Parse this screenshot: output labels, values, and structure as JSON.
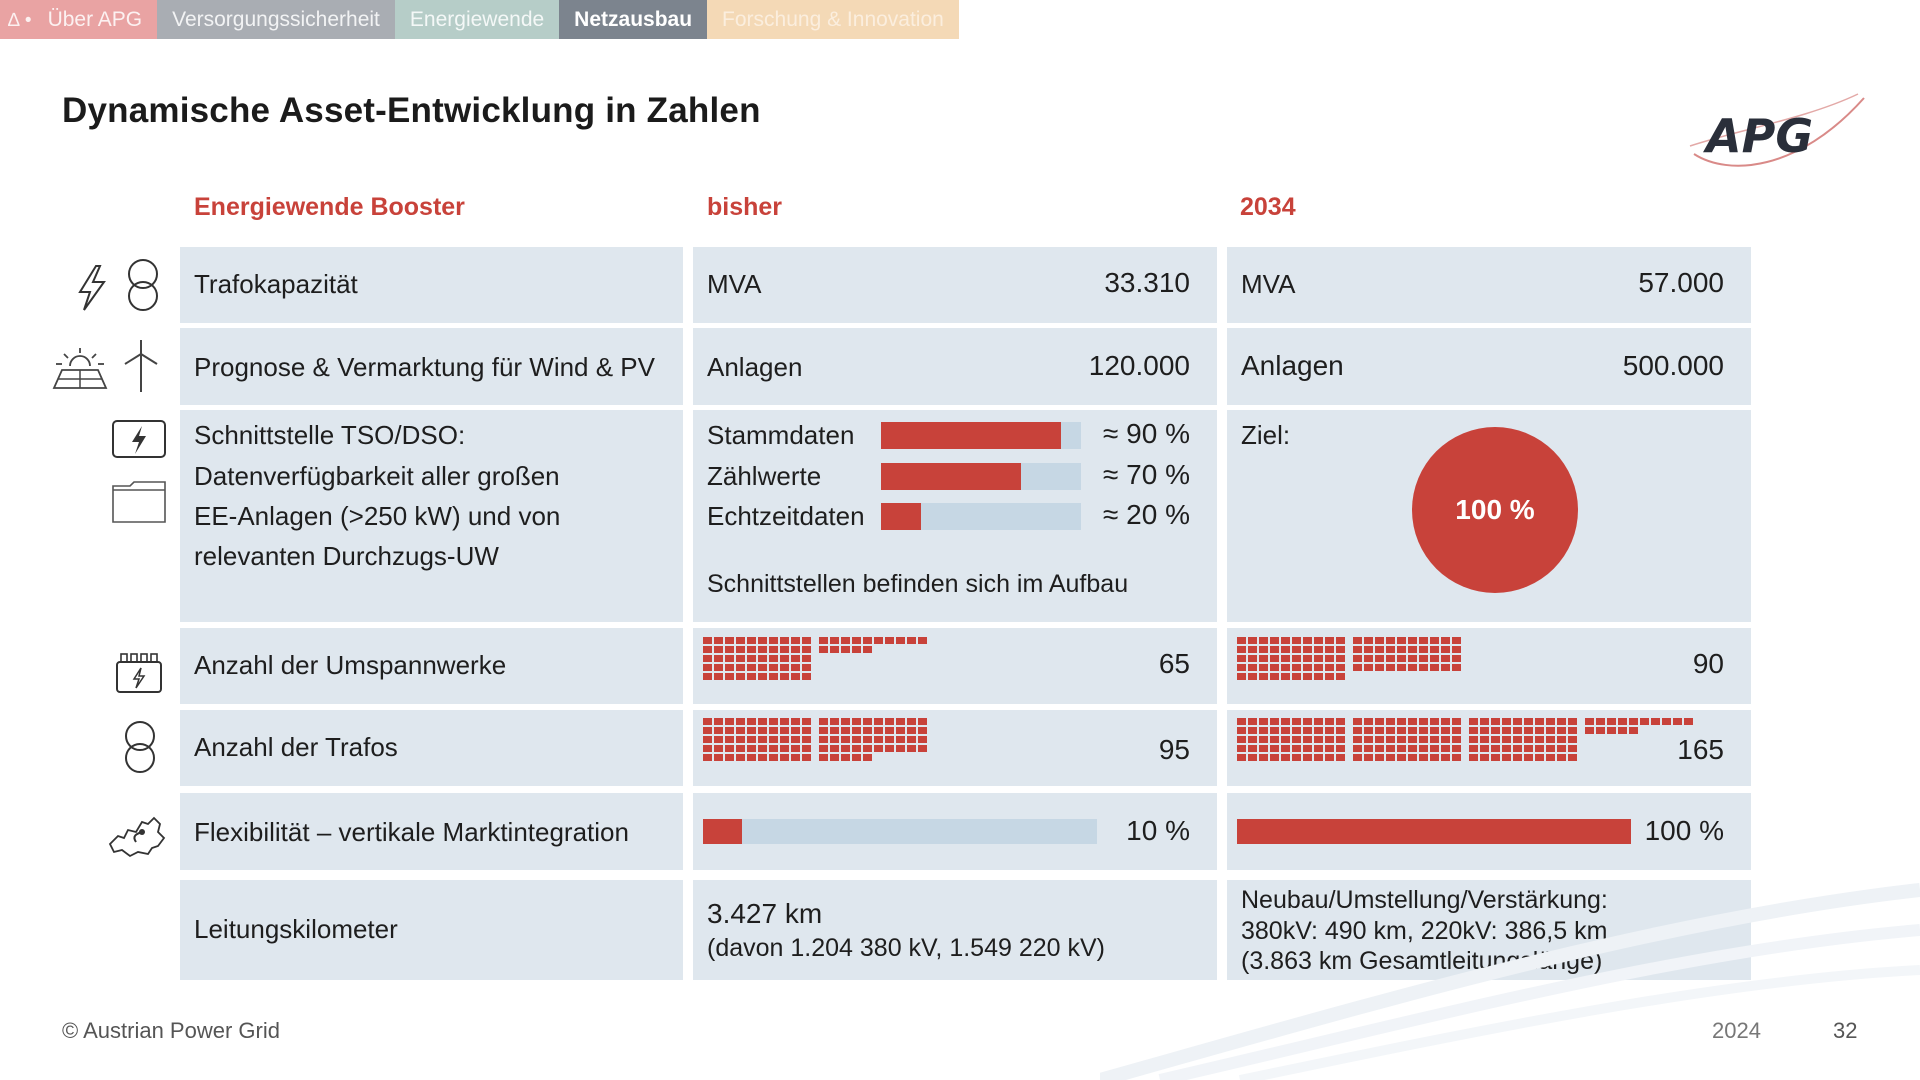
{
  "nav": {
    "tabs": [
      {
        "label": "Über APG",
        "glyph": "∆ •"
      },
      {
        "label": "Versorgungssicherheit"
      },
      {
        "label": "Energiewende"
      },
      {
        "label": "Netzausbau",
        "active": true
      },
      {
        "label": "Forschung & Innovation"
      }
    ]
  },
  "title": "Dynamische Asset-Entwicklung in Zahlen",
  "logo_text": "APG",
  "columns": {
    "booster": "Energiewende Booster",
    "bisher": "bisher",
    "target": "2034"
  },
  "rows": {
    "trafo": {
      "label": "Trafokapazität",
      "bisher_unit": "MVA",
      "bisher_value": "33.310",
      "target_unit": "MVA",
      "target_value": "57.000"
    },
    "prognose": {
      "label": "Prognose & Vermarktung für Wind & PV",
      "bisher_unit": "Anlagen",
      "bisher_value": "120.000",
      "target_unit": "Anlagen",
      "target_value": "500.000"
    },
    "schnittstelle": {
      "label_lines": [
        "Schnittstelle TSO/DSO:",
        "Datenverfügbarkeit aller großen",
        "EE-Anlagen (>250 kW) und von",
        "relevanten Durchzugs-UW"
      ],
      "bars": [
        {
          "label": "Stammdaten",
          "value_text": "≈ 90 %",
          "fraction": 0.9
        },
        {
          "label": "Zählwerte",
          "value_text": "≈ 70 %",
          "fraction": 0.7
        },
        {
          "label": "Echtzeitdaten",
          "value_text": "≈ 20 %",
          "fraction": 0.2
        }
      ],
      "note": "Schnittstellen befinden sich im Aufbau",
      "target_label": "Ziel:",
      "target_value": "100 %"
    },
    "umspannwerke": {
      "label": "Anzahl der Umspannwerke",
      "bisher_value": "65",
      "bisher_count": 65,
      "target_value": "90",
      "target_count": 90
    },
    "trafos": {
      "label": "Anzahl der Trafos",
      "bisher_value": "95",
      "bisher_count": 95,
      "target_value": "165",
      "target_count": 165
    },
    "flex": {
      "label": "Flexibilität – vertikale Marktintegration",
      "bisher_value": "10 %",
      "bisher_fraction": 0.1,
      "target_value": "100 %",
      "target_fraction": 1.0
    },
    "leitung": {
      "label": "Leitungskilometer",
      "bisher_main": "3.427 km",
      "bisher_sub": "(davon 1.204 380 kV, 1.549 220 kV)",
      "target_lines": [
        "Neubau/Umstellung/Verstärkung:",
        "380kV: 490 km, 220kV: 386,5 km",
        "(3.863 km Gesamtleitungslänge)"
      ]
    }
  },
  "colors": {
    "accent": "#c8423a",
    "cell": "#dfe7ee",
    "track": "#c6d7e4"
  },
  "icons": [
    "lightning-icon",
    "transformer-icon",
    "solar-panel-icon",
    "wind-turbine-icon",
    "power-interface-icon",
    "folder-icon",
    "substation-icon",
    "transformer-icon",
    "austria-map-icon"
  ],
  "footer": {
    "copyright": "© Austrian Power Grid",
    "year": "2024",
    "page": "32"
  }
}
